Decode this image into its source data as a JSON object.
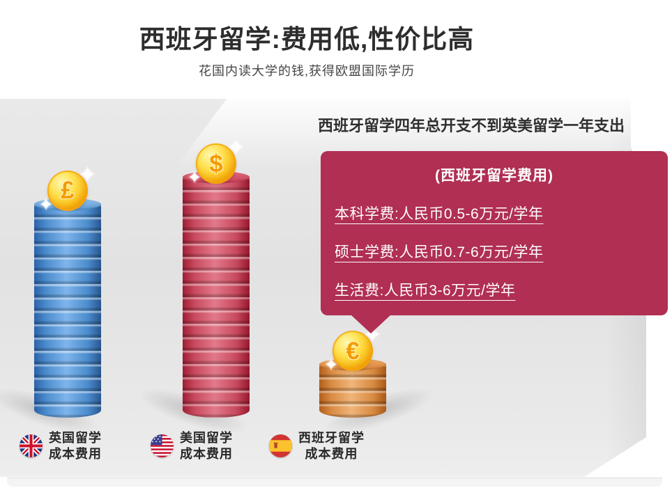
{
  "page": {
    "title": "西班牙留学:费用低,性价比高",
    "subtitle": "花国内读大学的钱,获得欧盟国际学历"
  },
  "chart": {
    "headline": "西班牙留学四年总开支不到英美留学一年支出",
    "callout": {
      "title": "(西班牙留学费用)",
      "items": [
        "本科学费:人民币0.5-6万元/学年",
        "硕士学费:人民币0.7-6万元/学年",
        "生活费:人民币3-6万元/学年"
      ]
    }
  },
  "legend": [
    {
      "flag": "uk-flag-icon",
      "line1": "英国留学",
      "line2": "成本费用"
    },
    {
      "flag": "us-flag-icon",
      "line1": "美国留学",
      "line2": "成本费用"
    },
    {
      "flag": "spain-flag-icon",
      "line1": "西班牙留学",
      "line2": "成本费用"
    }
  ],
  "chart_data": {
    "type": "bar",
    "title": "西班牙留学四年总开支不到英美留学一年支出",
    "categories": [
      "英国留学成本费用",
      "美国留学成本费用",
      "西班牙留学成本费用"
    ],
    "values": [
      16,
      18,
      4
    ],
    "unit": "coins",
    "note": "coin-stack pictogram, no numeric axis; heights are relative (UK and US stacks tall, Spain stack small)",
    "coin_symbols": [
      "£",
      "$",
      "€"
    ],
    "legend_position": "bottom",
    "colors": {
      "uk_stack": "#4c8ccd",
      "us_stack": "#c84a5e",
      "spain_stack": "#d98b42",
      "coin_gold": "#ffc927",
      "callout_bg": "#b02f53",
      "text_dark": "#2d2d2d"
    },
    "annotations": [
      "(西班牙留学费用)",
      "本科学费:人民币0.5-6万元/学年",
      "硕士学费:人民币0.7-6万元/学年",
      "生活费:人民币3-6万元/学年"
    ]
  }
}
